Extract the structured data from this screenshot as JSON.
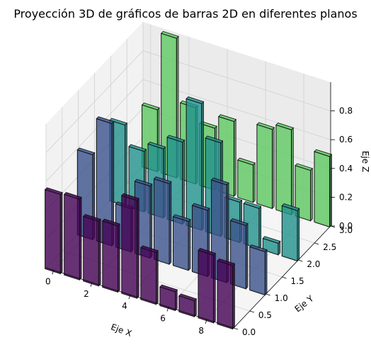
{
  "chart_data": {
    "type": "bar3d",
    "title": "Proyección 3D de gráficos de barras 2D en diferentes planos",
    "xlabel": "Eje X",
    "ylabel": "Eje Y",
    "zlabel": "Eje Z",
    "xlim": [
      -0.4,
      9.4
    ],
    "ylim": [
      0,
      3
    ],
    "zlim": [
      0,
      1
    ],
    "x_ticks": [
      "0",
      "2",
      "4",
      "6",
      "8"
    ],
    "y_ticks": [
      "0.0",
      "0.5",
      "1.0",
      "1.5",
      "2.0",
      "2.5",
      "3.0"
    ],
    "z_ticks": [
      "0.0",
      "0.2",
      "0.4",
      "0.6",
      "0.8"
    ],
    "grid": true,
    "categories": [
      0,
      1,
      2,
      3,
      4,
      5,
      6,
      7,
      8,
      9
    ],
    "series": [
      {
        "y": 0,
        "color": "#440154",
        "values": [
          0.55,
          0.56,
          0.45,
          0.46,
          0.68,
          0.36,
          0.13,
          0.11,
          0.47,
          0.44
        ]
      },
      {
        "y": 1,
        "color": "#3b528b",
        "values": [
          0.59,
          0.85,
          0.3,
          0.5,
          0.56,
          0.34,
          0.46,
          0.68,
          0.44,
          0.3
        ]
      },
      {
        "y": 2,
        "color": "#21918c",
        "values": [
          0.56,
          0.42,
          0.48,
          0.57,
          0.88,
          0.65,
          0.28,
          0.28,
          0.08,
          0.35
        ]
      },
      {
        "y": 3,
        "color": "#5ec962",
        "values": [
          0.43,
          0.97,
          0.53,
          0.43,
          0.52,
          0.26,
          0.55,
          0.59,
          0.35,
          0.49
        ]
      }
    ]
  }
}
